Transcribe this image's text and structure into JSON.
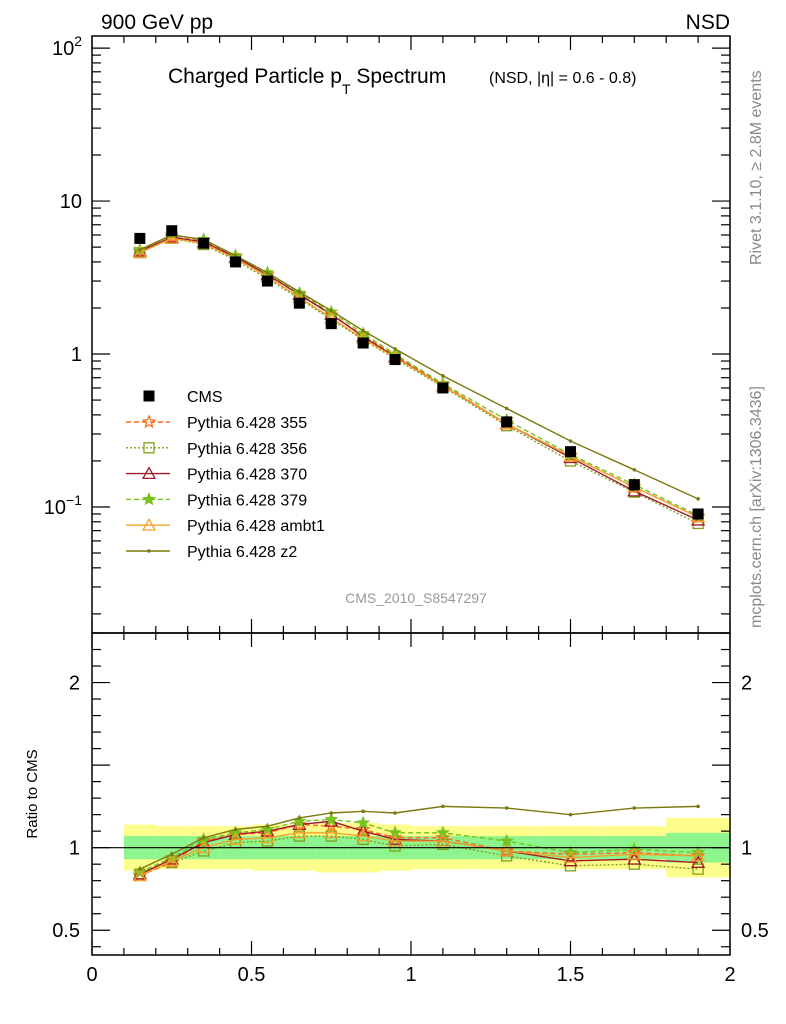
{
  "header": {
    "left": "900 GeV pp",
    "right": "NSD"
  },
  "title": {
    "main_prefix": "Charged Particle p",
    "main_sub": "T",
    "main_suffix": " Spectrum",
    "detail": "(NSD, |η| = 0.6 - 0.8)"
  },
  "side_text": {
    "rivet": "Rivet 3.1.10, ≥ 2.8M events",
    "mcplots": "mcplots.cern.ch [arXiv:1306.3436]"
  },
  "analysis_label": "CMS_2010_S8547297",
  "ratio_ylabel": "Ratio to CMS",
  "colors": {
    "data": "#000000",
    "p355": "#ff6a1e",
    "p356": "#7fa018",
    "p370": "#a11a2a",
    "p379": "#76c21f",
    "ambt1": "#f2a12a",
    "z2": "#7b7a10",
    "band_outer": "#fdfd8c",
    "band_inner": "#8ef48e"
  },
  "chart_data": {
    "type": "scatter",
    "x": [
      0.15,
      0.25,
      0.35,
      0.45,
      0.55,
      0.65,
      0.75,
      0.85,
      0.95,
      1.1,
      1.3,
      1.5,
      1.7,
      1.9
    ],
    "x_edges": [
      0.1,
      0.2,
      0.3,
      0.4,
      0.5,
      0.6,
      0.7,
      0.8,
      0.9,
      1.0,
      1.2,
      1.4,
      1.6,
      1.8,
      2.0
    ],
    "xlim": [
      0,
      2
    ],
    "xticks": [
      "0",
      "0.5",
      "1",
      "1.5",
      "2"
    ],
    "main_ylim": [
      0.015,
      120
    ],
    "main_yscale": "log",
    "main_yticks": [
      "10^-1",
      "1",
      "10",
      "10^2"
    ],
    "ratio_ylim": [
      0.35,
      2.3
    ],
    "ratio_yticks": [
      "0.5",
      "1",
      "2"
    ],
    "data": {
      "name": "CMS",
      "y": [
        5.7,
        6.4,
        5.3,
        4.0,
        3.0,
        2.15,
        1.58,
        1.18,
        0.92,
        0.6,
        0.36,
        0.23,
        0.14,
        0.09
      ]
    },
    "series": [
      {
        "name": "Pythia 6.428 355",
        "color_key": "p355",
        "marker": "star-open",
        "line": "dashed",
        "y": [
          4.7,
          5.8,
          5.5,
          4.3,
          3.3,
          2.45,
          1.8,
          1.32,
          0.98,
          0.63,
          0.35,
          0.215,
          0.135,
          0.086
        ],
        "ratio": [
          0.83,
          0.91,
          1.04,
          1.08,
          1.09,
          1.14,
          1.13,
          1.11,
          1.06,
          1.06,
          0.98,
          0.96,
          0.97,
          0.95
        ]
      },
      {
        "name": "Pythia 6.428 356",
        "color_key": "p356",
        "marker": "square-open",
        "line": "dotted",
        "y": [
          4.6,
          5.7,
          5.2,
          4.1,
          3.1,
          2.3,
          1.68,
          1.24,
          0.93,
          0.61,
          0.34,
          0.2,
          0.125,
          0.078
        ],
        "ratio": [
          0.84,
          0.91,
          0.98,
          1.03,
          1.04,
          1.07,
          1.07,
          1.05,
          1.01,
          1.02,
          0.95,
          0.89,
          0.9,
          0.87
        ]
      },
      {
        "name": "Pythia 6.428 370",
        "color_key": "p370",
        "marker": "triangle-open",
        "line": "solid",
        "y": [
          4.7,
          5.8,
          5.4,
          4.3,
          3.3,
          2.45,
          1.82,
          1.3,
          0.96,
          0.62,
          0.35,
          0.21,
          0.127,
          0.082
        ],
        "ratio": [
          0.84,
          0.93,
          1.03,
          1.08,
          1.1,
          1.14,
          1.16,
          1.1,
          1.05,
          1.04,
          0.98,
          0.92,
          0.93,
          0.91
        ]
      },
      {
        "name": "Pythia 6.428 379",
        "color_key": "p379",
        "marker": "star-filled",
        "line": "dashed",
        "y": [
          4.8,
          6.0,
          5.6,
          4.4,
          3.4,
          2.5,
          1.88,
          1.36,
          1.0,
          0.64,
          0.37,
          0.22,
          0.14,
          0.088
        ],
        "ratio": [
          0.85,
          0.94,
          1.05,
          1.09,
          1.11,
          1.16,
          1.17,
          1.15,
          1.09,
          1.09,
          1.04,
          0.97,
          0.99,
          0.97
        ]
      },
      {
        "name": "Pythia 6.428 ambt1",
        "color_key": "ambt1",
        "marker": "triangle-open",
        "line": "solid",
        "y": [
          4.6,
          5.7,
          5.3,
          4.2,
          3.2,
          2.35,
          1.72,
          1.26,
          0.95,
          0.62,
          0.35,
          0.215,
          0.135,
          0.086
        ],
        "ratio": [
          0.83,
          0.92,
          1.0,
          1.05,
          1.06,
          1.09,
          1.09,
          1.07,
          1.04,
          1.04,
          0.98,
          0.94,
          0.96,
          0.95
        ]
      },
      {
        "name": "Pythia 6.428 z2",
        "color_key": "z2",
        "marker": "dot",
        "line": "solid",
        "y": [
          4.8,
          6.0,
          5.6,
          4.4,
          3.4,
          2.55,
          1.92,
          1.42,
          1.08,
          0.72,
          0.44,
          0.27,
          0.175,
          0.113
        ],
        "ratio": [
          0.87,
          0.96,
          1.06,
          1.11,
          1.13,
          1.18,
          1.21,
          1.22,
          1.21,
          1.25,
          1.24,
          1.2,
          1.24,
          1.25
        ]
      }
    ],
    "ratio_band_inner": [
      0.07,
      0.07,
      0.07,
      0.07,
      0.07,
      0.07,
      0.07,
      0.07,
      0.07,
      0.07,
      0.07,
      0.07,
      0.07,
      0.09
    ],
    "ratio_band_outer": [
      0.14,
      0.13,
      0.13,
      0.13,
      0.14,
      0.14,
      0.15,
      0.15,
      0.14,
      0.13,
      0.13,
      0.13,
      0.13,
      0.18
    ]
  }
}
